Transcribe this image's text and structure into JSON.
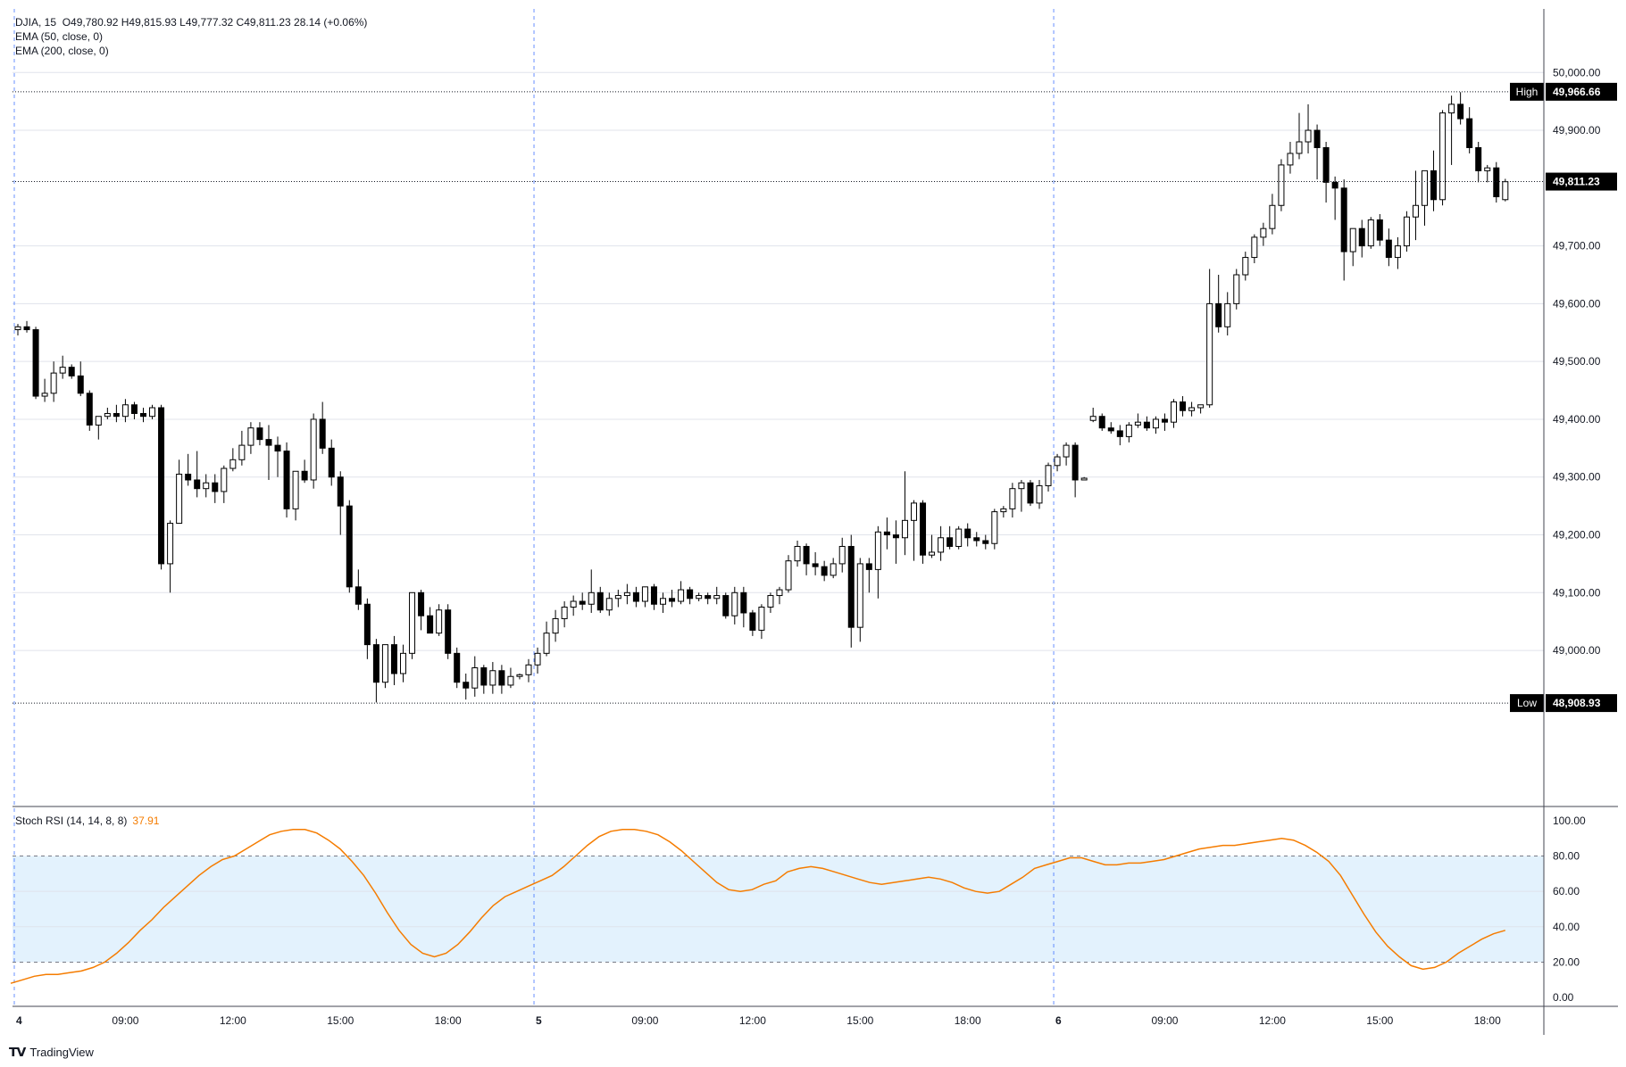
{
  "header": {
    "symbol": "DJIA, 15",
    "ohlc": "O49,780.92  H49,815.93  L49,777.32  C49,811.23  28.14 (+0.06%)",
    "ema50": "EMA (50, close, 0)",
    "ema200": "EMA (200, close, 0)"
  },
  "stoch_label": "Stoch RSI (14, 14, 8, 8)",
  "stoch_value": "37.91",
  "brand": "TradingView",
  "colors": {
    "up": "#ffffff",
    "down": "#000000",
    "stoch_line": "#f57c00",
    "stoch_band": "#e3f2fd"
  },
  "chart_data": [
    {
      "type": "candlestick",
      "title": "DJIA, 15",
      "ylim": [
        48730,
        50110
      ],
      "yticks": [
        49000,
        49100,
        49200,
        49300,
        49400,
        49500,
        49600,
        49700,
        49900,
        50000
      ],
      "ytick_labels": [
        "49,000.00",
        "49,100.00",
        "49,200.00",
        "49,300.00",
        "49,400.00",
        "49,500.00",
        "49,600.00",
        "49,700.00",
        "49,900.00",
        "50,000.00"
      ],
      "high_marker": {
        "label": "High",
        "value": 49966.66,
        "text": "49,966.66"
      },
      "low_marker": {
        "label": "Low",
        "value": 48908.93,
        "text": "48,908.93"
      },
      "last_price": {
        "value": 49811.23,
        "text": "49,811.23"
      },
      "x_labels": [
        {
          "bar": 0,
          "text": "4",
          "bold": true
        },
        {
          "bar": 12,
          "text": "09:00"
        },
        {
          "bar": 24,
          "text": "12:00"
        },
        {
          "bar": 36,
          "text": "15:00"
        },
        {
          "bar": 48,
          "text": "18:00"
        },
        {
          "bar": 58,
          "text": "5",
          "bold": true
        },
        {
          "bar": 70,
          "text": "09:00"
        },
        {
          "bar": 82,
          "text": "12:00"
        },
        {
          "bar": 94,
          "text": "15:00"
        },
        {
          "bar": 106,
          "text": "18:00"
        },
        {
          "bar": 116,
          "text": "6",
          "bold": true
        },
        {
          "bar": 128,
          "text": "09:00"
        },
        {
          "bar": 140,
          "text": "12:00"
        },
        {
          "bar": 152,
          "text": "15:00"
        },
        {
          "bar": 164,
          "text": "18:00"
        }
      ],
      "session_breaks": [
        0,
        58,
        116
      ],
      "candles": [
        [
          49555,
          49565,
          49545,
          49560
        ],
        [
          49560,
          49570,
          49550,
          49555
        ],
        [
          49555,
          49560,
          49435,
          49440
        ],
        [
          49440,
          49470,
          49430,
          49445
        ],
        [
          49445,
          49500,
          49430,
          49480
        ],
        [
          49480,
          49510,
          49470,
          49490
        ],
        [
          49490,
          49495,
          49470,
          49475
        ],
        [
          49475,
          49500,
          49440,
          49445
        ],
        [
          49445,
          49450,
          49380,
          49390
        ],
        [
          49390,
          49400,
          49365,
          49405
        ],
        [
          49405,
          49420,
          49400,
          49410
        ],
        [
          49410,
          49425,
          49395,
          49405
        ],
        [
          49405,
          49435,
          49395,
          49425
        ],
        [
          49425,
          49430,
          49400,
          49410
        ],
        [
          49410,
          49420,
          49395,
          49405
        ],
        [
          49405,
          49425,
          49400,
          49420
        ],
        [
          49420,
          49425,
          49140,
          49150
        ],
        [
          49150,
          49225,
          49100,
          49220
        ],
        [
          49220,
          49330,
          49220,
          49305
        ],
        [
          49305,
          49340,
          49285,
          49295
        ],
        [
          49295,
          49345,
          49265,
          49280
        ],
        [
          49280,
          49305,
          49265,
          49290
        ],
        [
          49290,
          49305,
          49255,
          49275
        ],
        [
          49275,
          49320,
          49255,
          49315
        ],
        [
          49315,
          49350,
          49310,
          49330
        ],
        [
          49330,
          49380,
          49320,
          49355
        ],
        [
          49355,
          49395,
          49340,
          49385
        ],
        [
          49385,
          49395,
          49355,
          49365
        ],
        [
          49365,
          49390,
          49295,
          49355
        ],
        [
          49355,
          49370,
          49300,
          49345
        ],
        [
          49345,
          49360,
          49230,
          49245
        ],
        [
          49245,
          49310,
          49225,
          49310
        ],
        [
          49310,
          49330,
          49290,
          49295
        ],
        [
          49295,
          49410,
          49280,
          49400
        ],
        [
          49400,
          49430,
          49340,
          49350
        ],
        [
          49350,
          49365,
          49285,
          49300
        ],
        [
          49300,
          49310,
          49200,
          49250
        ],
        [
          49250,
          49260,
          49100,
          49110
        ],
        [
          49110,
          49140,
          49070,
          49080
        ],
        [
          49080,
          49090,
          48985,
          49010
        ],
        [
          49010,
          49020,
          48910,
          48945
        ],
        [
          48945,
          49010,
          48935,
          49010
        ],
        [
          49010,
          49025,
          48940,
          48960
        ],
        [
          48960,
          49010,
          48945,
          48995
        ],
        [
          48995,
          49100,
          48985,
          49100
        ],
        [
          49100,
          49105,
          49035,
          49060
        ],
        [
          49060,
          49075,
          49030,
          49030
        ],
        [
          49030,
          49080,
          49025,
          49070
        ],
        [
          49070,
          49080,
          48985,
          48995
        ],
        [
          48995,
          49005,
          48935,
          48945
        ],
        [
          48945,
          48960,
          48915,
          48935
        ],
        [
          48935,
          48990,
          48920,
          48970
        ],
        [
          48970,
          48975,
          48925,
          48940
        ],
        [
          48940,
          48980,
          48925,
          48965
        ],
        [
          48965,
          48975,
          48925,
          48940
        ],
        [
          48940,
          48970,
          48935,
          48955
        ],
        [
          48955,
          48960,
          48950,
          48958
        ],
        [
          48958,
          48985,
          48945,
          48975
        ],
        [
          48975,
          49005,
          48960,
          48995
        ],
        [
          48995,
          49050,
          48990,
          49030
        ],
        [
          49030,
          49070,
          49015,
          49055
        ],
        [
          49055,
          49085,
          49040,
          49075
        ],
        [
          49075,
          49095,
          49060,
          49085
        ],
        [
          49085,
          49100,
          49070,
          49080
        ],
        [
          49080,
          49140,
          49065,
          49100
        ],
        [
          49100,
          49110,
          49065,
          49070
        ],
        [
          49070,
          49100,
          49060,
          49090
        ],
        [
          49090,
          49105,
          49075,
          49095
        ],
        [
          49095,
          49115,
          49080,
          49100
        ],
        [
          49100,
          49110,
          49075,
          49085
        ],
        [
          49085,
          49110,
          49075,
          49110
        ],
        [
          49110,
          49115,
          49070,
          49080
        ],
        [
          49080,
          49100,
          49065,
          49090
        ],
        [
          49090,
          49105,
          49075,
          49085
        ],
        [
          49085,
          49120,
          49080,
          49105
        ],
        [
          49105,
          49110,
          49080,
          49090
        ],
        [
          49090,
          49100,
          49085,
          49095
        ],
        [
          49095,
          49100,
          49080,
          49090
        ],
        [
          49090,
          49110,
          49080,
          49095
        ],
        [
          49095,
          49100,
          49055,
          49060
        ],
        [
          49060,
          49110,
          49045,
          49100
        ],
        [
          49100,
          49110,
          49040,
          49065
        ],
        [
          49065,
          49070,
          49025,
          49035
        ],
        [
          49035,
          49080,
          49020,
          49075
        ],
        [
          49075,
          49100,
          49065,
          49095
        ],
        [
          49095,
          49110,
          49080,
          49105
        ],
        [
          49105,
          49165,
          49100,
          49155
        ],
        [
          49155,
          49190,
          49145,
          49180
        ],
        [
          49180,
          49185,
          49130,
          49150
        ],
        [
          49150,
          49170,
          49130,
          49145
        ],
        [
          49145,
          49155,
          49120,
          49130
        ],
        [
          49130,
          49160,
          49125,
          49150
        ],
        [
          49150,
          49195,
          49135,
          49180
        ],
        [
          49180,
          49200,
          49005,
          49040
        ],
        [
          49040,
          49160,
          49015,
          49150
        ],
        [
          49150,
          49160,
          49100,
          49140
        ],
        [
          49140,
          49215,
          49090,
          49205
        ],
        [
          49205,
          49230,
          49175,
          49200
        ],
        [
          49200,
          49225,
          49150,
          49195
        ],
        [
          49195,
          49310,
          49165,
          49225
        ],
        [
          49225,
          49260,
          49155,
          49255
        ],
        [
          49255,
          49260,
          49150,
          49165
        ],
        [
          49165,
          49200,
          49160,
          49170
        ],
        [
          49170,
          49215,
          49155,
          49195
        ],
        [
          49195,
          49215,
          49175,
          49180
        ],
        [
          49180,
          49215,
          49175,
          49210
        ],
        [
          49210,
          49220,
          49180,
          49195
        ],
        [
          49195,
          49205,
          49180,
          49190
        ],
        [
          49190,
          49200,
          49175,
          49185
        ],
        [
          49185,
          49245,
          49175,
          49240
        ],
        [
          49240,
          49250,
          49230,
          49245
        ],
        [
          49245,
          49290,
          49230,
          49280
        ],
        [
          49280,
          49295,
          49240,
          49290
        ],
        [
          49290,
          49295,
          49250,
          49255
        ],
        [
          49255,
          49295,
          49245,
          49285
        ],
        [
          49285,
          49325,
          49275,
          49320
        ],
        [
          49320,
          49340,
          49310,
          49335
        ],
        [
          49335,
          49360,
          49320,
          49355
        ],
        [
          49355,
          49360,
          49265,
          49295
        ],
        [
          49295,
          49300,
          49295,
          49298
        ],
        [
          49398,
          49420,
          49395,
          49405
        ],
        [
          49405,
          49410,
          49380,
          49385
        ],
        [
          49385,
          49395,
          49375,
          49380
        ],
        [
          49380,
          49390,
          49355,
          49370
        ],
        [
          49370,
          49395,
          49360,
          49390
        ],
        [
          49390,
          49410,
          49385,
          49395
        ],
        [
          49395,
          49405,
          49380,
          49385
        ],
        [
          49385,
          49405,
          49375,
          49400
        ],
        [
          49400,
          49410,
          49380,
          49395
        ],
        [
          49395,
          49435,
          49385,
          49430
        ],
        [
          49430,
          49440,
          49405,
          49415
        ],
        [
          49415,
          49430,
          49405,
          49420
        ],
        [
          49420,
          49425,
          49410,
          49425
        ],
        [
          49425,
          49660,
          49420,
          49600
        ],
        [
          49600,
          49650,
          49550,
          49560
        ],
        [
          49560,
          49620,
          49545,
          49600
        ],
        [
          49600,
          49660,
          49590,
          49650
        ],
        [
          49650,
          49690,
          49640,
          49680
        ],
        [
          49680,
          49720,
          49670,
          49715
        ],
        [
          49715,
          49740,
          49700,
          49730
        ],
        [
          49730,
          49790,
          49720,
          49770
        ],
        [
          49770,
          49850,
          49760,
          49840
        ],
        [
          49840,
          49880,
          49825,
          49860
        ],
        [
          49860,
          49930,
          49850,
          49880
        ],
        [
          49880,
          49945,
          49860,
          49900
        ],
        [
          49900,
          49910,
          49815,
          49870
        ],
        [
          49870,
          49880,
          49775,
          49810
        ],
        [
          49810,
          49820,
          49745,
          49800
        ],
        [
          49800,
          49815,
          49640,
          49690
        ],
        [
          49690,
          49730,
          49665,
          49730
        ],
        [
          49730,
          49745,
          49680,
          49700
        ],
        [
          49700,
          49750,
          49695,
          49745
        ],
        [
          49745,
          49755,
          49700,
          49710
        ],
        [
          49710,
          49730,
          49665,
          49680
        ],
        [
          49680,
          49715,
          49660,
          49700
        ],
        [
          49700,
          49760,
          49690,
          49750
        ],
        [
          49750,
          49830,
          49710,
          49770
        ],
        [
          49770,
          49830,
          49735,
          49830
        ],
        [
          49830,
          49865,
          49760,
          49780
        ],
        [
          49780,
          49935,
          49770,
          49930
        ],
        [
          49930,
          49960,
          49840,
          49945
        ],
        [
          49945,
          49966,
          49910,
          49920
        ],
        [
          49920,
          49940,
          49860,
          49870
        ],
        [
          49870,
          49880,
          49810,
          49830
        ],
        [
          49830,
          49840,
          49810,
          49835
        ],
        [
          49835,
          49845,
          49775,
          49785
        ],
        [
          49780,
          49816,
          49777,
          49811
        ]
      ]
    },
    {
      "type": "line",
      "title": "Stoch RSI (14, 14, 8, 8)",
      "ylim": [
        -5,
        108
      ],
      "yticks": [
        0,
        20,
        40,
        60,
        80,
        100
      ],
      "ytick_labels": [
        "0.00",
        "20.00",
        "40.00",
        "60.00",
        "80.00",
        "100.00"
      ],
      "band": [
        20,
        80
      ],
      "series": [
        {
          "name": "Stoch RSI",
          "values": [
            8,
            10,
            12,
            13,
            13,
            14,
            15,
            17,
            20,
            25,
            31,
            38,
            44,
            51,
            57,
            63,
            69,
            74,
            78,
            80,
            84,
            88,
            92,
            94,
            95,
            95,
            93,
            89,
            84,
            77,
            69,
            59,
            48,
            38,
            30,
            25,
            23,
            25,
            30,
            37,
            45,
            52,
            57,
            60,
            63,
            66,
            69,
            74,
            80,
            86,
            91,
            94,
            95,
            95,
            94,
            92,
            88,
            83,
            77,
            71,
            65,
            61,
            60,
            61,
            64,
            66,
            71,
            73,
            74,
            73,
            71,
            69,
            67,
            65,
            64,
            65,
            66,
            67,
            68,
            67,
            65,
            62,
            60,
            59,
            60,
            64,
            68,
            73,
            75,
            77,
            79,
            79,
            77,
            75,
            75,
            76,
            76,
            77,
            78,
            80,
            82,
            84,
            85,
            86,
            86,
            87,
            88,
            89,
            90,
            89,
            86,
            82,
            77,
            69,
            58,
            47,
            37,
            29,
            23,
            18,
            16,
            17,
            20,
            25,
            29,
            33,
            36,
            38
          ]
        }
      ]
    }
  ]
}
